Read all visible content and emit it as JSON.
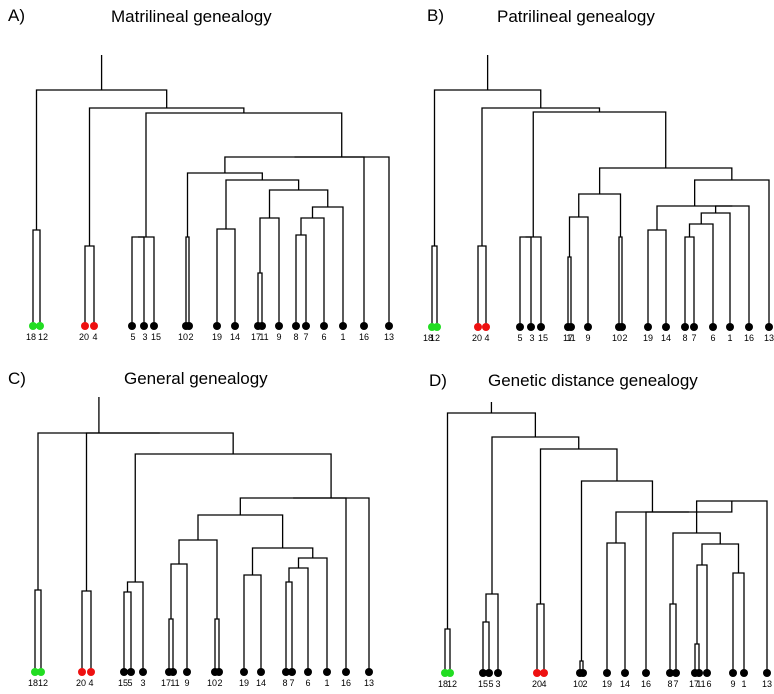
{
  "chart_data": [
    {
      "type": "dendrogram",
      "letter": "A)",
      "title": "Matrilineal genealogy",
      "leaves": [
        {
          "label": "18",
          "color": "#22dd22"
        },
        {
          "label": "12",
          "color": "#22dd22"
        },
        {
          "label": "20",
          "color": "#ee1111"
        },
        {
          "label": "4",
          "color": "#ee1111"
        },
        {
          "label": "5",
          "color": "#000000"
        },
        {
          "label": "3",
          "color": "#000000"
        },
        {
          "label": "15",
          "color": "#000000"
        },
        {
          "label": "10",
          "color": "#000000"
        },
        {
          "label": "2",
          "color": "#000000"
        },
        {
          "label": "19",
          "color": "#000000"
        },
        {
          "label": "14",
          "color": "#000000"
        },
        {
          "label": "17",
          "color": "#000000"
        },
        {
          "label": "11",
          "color": "#000000"
        },
        {
          "label": "9",
          "color": "#000000"
        },
        {
          "label": "8",
          "color": "#000000"
        },
        {
          "label": "7",
          "color": "#000000"
        },
        {
          "label": "6",
          "color": "#000000"
        },
        {
          "label": "1",
          "color": "#000000"
        },
        {
          "label": "16",
          "color": "#000000"
        },
        {
          "label": "13",
          "color": "#000000"
        }
      ],
      "tree": [
        [
          [
            0,
            1
          ],
          0.38
        ],
        [
          [
            2,
            3
          ],
          0.34
        ],
        [
          [
            [
              4,
              5
            ],
            0.37
          ],
          6
        ],
        [
          [
            7,
            8
          ],
          0.37
        ],
        [
          [
            9,
            10
          ],
          0.42
        ],
        [
          [
            [
              [
                11,
                12
              ],
              0.24
            ],
            13
          ],
          0.46
        ],
        [
          [
            14,
            15
          ],
          0.37
        ],
        [
          [
            [
              [
                4,
                [
                  16,
                  0.0
                ]
              ],
              [
                17,
                0.0
              ]
            ],
            0.0
          ],
          0.0
        ]
      ]
    },
    {
      "type": "dendrogram",
      "letter": "B)",
      "title": "Patrilineal genealogy",
      "leaves": [
        {
          "label": "18",
          "color": "#22dd22"
        },
        {
          "label": "12",
          "color": "#22dd22"
        },
        {
          "label": "20",
          "color": "#ee1111"
        },
        {
          "label": "4",
          "color": "#ee1111"
        },
        {
          "label": "5",
          "color": "#000000"
        },
        {
          "label": "3",
          "color": "#000000"
        },
        {
          "label": "15",
          "color": "#000000"
        },
        {
          "label": "17",
          "color": "#000000"
        },
        {
          "label": "11",
          "color": "#000000"
        },
        {
          "label": "9",
          "color": "#000000"
        },
        {
          "label": "10",
          "color": "#000000"
        },
        {
          "label": "2",
          "color": "#000000"
        },
        {
          "label": "19",
          "color": "#000000"
        },
        {
          "label": "14",
          "color": "#000000"
        },
        {
          "label": "8",
          "color": "#000000"
        },
        {
          "label": "7",
          "color": "#000000"
        },
        {
          "label": "6",
          "color": "#000000"
        },
        {
          "label": "1",
          "color": "#000000"
        },
        {
          "label": "16",
          "color": "#000000"
        },
        {
          "label": "13",
          "color": "#000000"
        }
      ]
    },
    {
      "type": "dendrogram",
      "letter": "C)",
      "title": "General genealogy",
      "leaves": [
        {
          "label": "18",
          "color": "#22dd22"
        },
        {
          "label": "12",
          "color": "#22dd22"
        },
        {
          "label": "20",
          "color": "#ee1111"
        },
        {
          "label": "4",
          "color": "#ee1111"
        },
        {
          "label": "15",
          "color": "#000000"
        },
        {
          "label": "5",
          "color": "#000000"
        },
        {
          "label": "3",
          "color": "#000000"
        },
        {
          "label": "17",
          "color": "#000000"
        },
        {
          "label": "11",
          "color": "#000000"
        },
        {
          "label": "9",
          "color": "#000000"
        },
        {
          "label": "10",
          "color": "#000000"
        },
        {
          "label": "2",
          "color": "#000000"
        },
        {
          "label": "19",
          "color": "#000000"
        },
        {
          "label": "14",
          "color": "#000000"
        },
        {
          "label": "8",
          "color": "#000000"
        },
        {
          "label": "7",
          "color": "#000000"
        },
        {
          "label": "6",
          "color": "#000000"
        },
        {
          "label": "1",
          "color": "#000000"
        },
        {
          "label": "16",
          "color": "#000000"
        },
        {
          "label": "13",
          "color": "#000000"
        }
      ]
    },
    {
      "type": "dendrogram",
      "letter": "D)",
      "title": "Genetic distance genealogy",
      "leaves": [
        {
          "label": "18",
          "color": "#22dd22"
        },
        {
          "label": "12",
          "color": "#22dd22"
        },
        {
          "label": "15",
          "color": "#000000"
        },
        {
          "label": "5",
          "color": "#000000"
        },
        {
          "label": "3",
          "color": "#000000"
        },
        {
          "label": "20",
          "color": "#ee1111"
        },
        {
          "label": "4",
          "color": "#ee1111"
        },
        {
          "label": "10",
          "color": "#000000"
        },
        {
          "label": "2",
          "color": "#000000"
        },
        {
          "label": "19",
          "color": "#000000"
        },
        {
          "label": "14",
          "color": "#000000"
        },
        {
          "label": "16",
          "color": "#000000"
        },
        {
          "label": "8",
          "color": "#000000"
        },
        {
          "label": "7",
          "color": "#000000"
        },
        {
          "label": "17",
          "color": "#000000"
        },
        {
          "label": "11",
          "color": "#000000"
        },
        {
          "label": "6",
          "color": "#000000"
        },
        {
          "label": "9",
          "color": "#000000"
        },
        {
          "label": "1",
          "color": "#000000"
        },
        {
          "label": "13",
          "color": "#000000"
        }
      ]
    }
  ]
}
